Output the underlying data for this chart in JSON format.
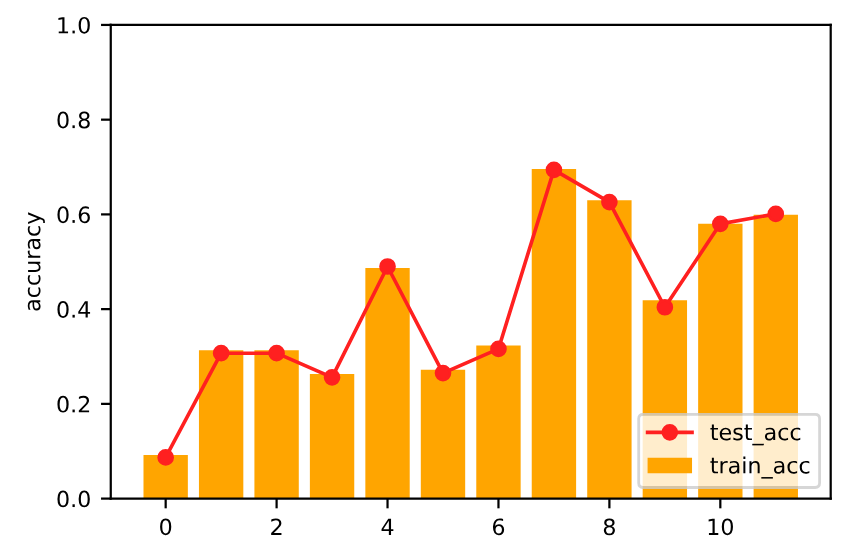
{
  "chart_data": {
    "type": "bar",
    "ylabel": "accuracy",
    "x": [
      0,
      1,
      2,
      3,
      4,
      5,
      6,
      7,
      8,
      9,
      10,
      11
    ],
    "series": [
      {
        "name": "train_acc",
        "color": "#ffa500",
        "values": [
          0.092,
          0.313,
          0.313,
          0.263,
          0.487,
          0.272,
          0.323,
          0.696,
          0.63,
          0.419,
          0.58,
          0.599
        ]
      },
      {
        "name": "test_acc",
        "type": "line",
        "color": "#ff2020",
        "marker": "circle",
        "values": [
          0.087,
          0.307,
          0.307,
          0.256,
          0.49,
          0.265,
          0.316,
          0.694,
          0.626,
          0.404,
          0.58,
          0.601
        ]
      }
    ],
    "xlim": [
      -0.99,
      11.99
    ],
    "xticks": [
      0,
      2,
      4,
      6,
      8,
      10
    ],
    "ylim": [
      0,
      1
    ],
    "yticks": [
      {
        "value": 0,
        "label": "0.0"
      },
      0.2,
      0.4,
      0.6,
      0.8,
      {
        "value": 1,
        "label": "1.0"
      }
    ],
    "legend": "lower right"
  }
}
